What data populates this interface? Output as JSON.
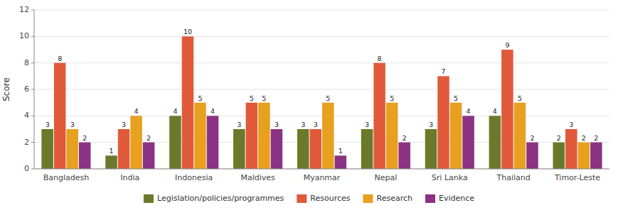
{
  "chart_data": {
    "type": "bar",
    "categories": [
      "Bangladesh",
      "India",
      "Indonesia",
      "Maldives",
      "Myanmar",
      "Nepal",
      "Sri Lanka",
      "Thailand",
      "Timor-Leste"
    ],
    "series": [
      {
        "name": "Legislation/policies/programmes",
        "color": "#6b7a2a",
        "values": [
          3,
          1,
          4,
          3,
          3,
          3,
          3,
          4,
          2
        ]
      },
      {
        "name": "Resources",
        "color": "#e05a3a",
        "values": [
          8,
          3,
          10,
          5,
          3,
          8,
          7,
          9,
          3
        ]
      },
      {
        "name": "Research",
        "color": "#e8a020",
        "values": [
          3,
          4,
          5,
          5,
          5,
          5,
          5,
          5,
          2
        ]
      },
      {
        "name": "Evidence",
        "color": "#8b3282",
        "values": [
          2,
          2,
          4,
          3,
          1,
          2,
          4,
          2,
          2
        ]
      }
    ],
    "ylabel": "Score",
    "ylim": [
      0,
      12
    ],
    "yticks": [
      0,
      2,
      4,
      6,
      8,
      10,
      12
    ],
    "grid": true,
    "data_labels": true,
    "legend": "bottom"
  }
}
